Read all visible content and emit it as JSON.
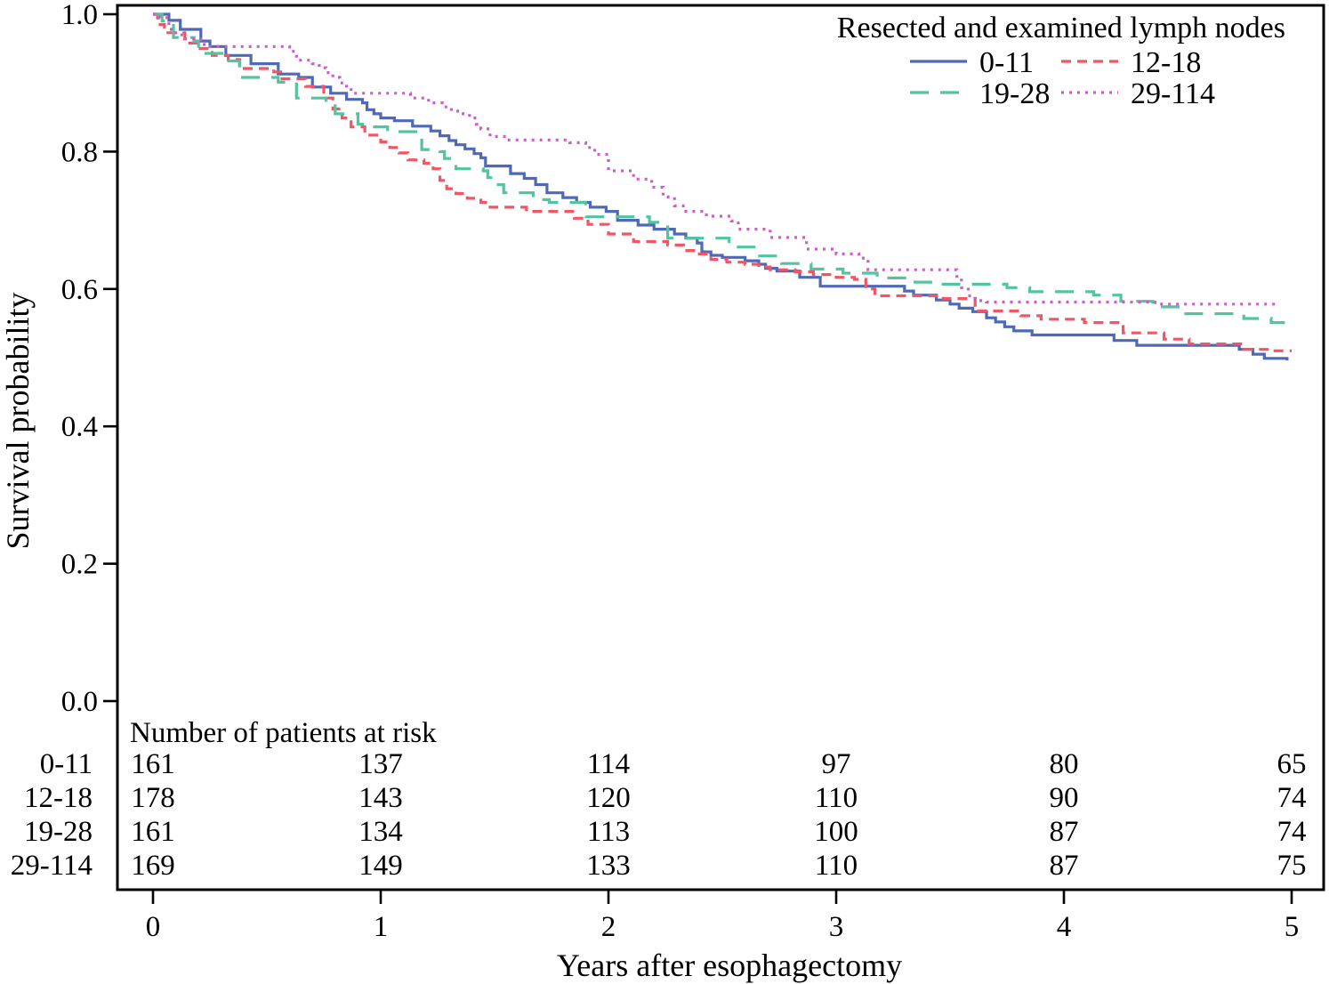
{
  "figure": {
    "y_axis_label": "Survival probability",
    "x_axis_label": "Years after esophagectomy",
    "risk_table_header": "Number of patients at risk"
  },
  "legend": {
    "title": "Resected and examined lymph nodes",
    "items": [
      "0-11",
      "12-18",
      "19-28",
      "29-114"
    ]
  },
  "chart_data": {
    "type": "line",
    "subtype": "kaplan-meier-step",
    "title": "Resected and examined lymph nodes",
    "xlabel": "Years after esophagectomy",
    "ylabel": "Survival probability",
    "xlim": [
      0,
      5
    ],
    "ylim": [
      0.0,
      1.0
    ],
    "x_tick_labels": [
      "0",
      "1",
      "2",
      "3",
      "4",
      "5"
    ],
    "x_tick_values": [
      0,
      1,
      2,
      3,
      4,
      5
    ],
    "y_tick_labels": [
      "1.0",
      "0.8",
      "0.6",
      "0.4",
      "0.2",
      "0.0"
    ],
    "y_tick_values": [
      1.0,
      0.8,
      0.6,
      0.4,
      0.2,
      0.0
    ],
    "grid": false,
    "legend_position": "top-right",
    "series": [
      {
        "name": "0-11",
        "color": "#5069b4",
        "style": "solid",
        "points": [
          [
            0,
            1.0
          ],
          [
            0.07,
            0.991
          ],
          [
            0.12,
            0.978
          ],
          [
            0.21,
            0.961
          ],
          [
            0.25,
            0.953
          ],
          [
            0.32,
            0.94
          ],
          [
            0.43,
            0.928
          ],
          [
            0.55,
            0.913
          ],
          [
            0.64,
            0.908
          ],
          [
            0.7,
            0.894
          ],
          [
            0.78,
            0.885
          ],
          [
            0.85,
            0.876
          ],
          [
            0.92,
            0.871
          ],
          [
            0.94,
            0.861
          ],
          [
            0.97,
            0.855
          ],
          [
            1.0,
            0.849
          ],
          [
            1.06,
            0.845
          ],
          [
            1.14,
            0.837
          ],
          [
            1.22,
            0.83
          ],
          [
            1.26,
            0.823
          ],
          [
            1.3,
            0.816
          ],
          [
            1.33,
            0.81
          ],
          [
            1.37,
            0.804
          ],
          [
            1.41,
            0.797
          ],
          [
            1.44,
            0.791
          ],
          [
            1.46,
            0.779
          ],
          [
            1.57,
            0.768
          ],
          [
            1.63,
            0.761
          ],
          [
            1.68,
            0.752
          ],
          [
            1.73,
            0.74
          ],
          [
            1.8,
            0.733
          ],
          [
            1.86,
            0.726
          ],
          [
            1.92,
            0.719
          ],
          [
            1.99,
            0.713
          ],
          [
            2.04,
            0.7
          ],
          [
            2.13,
            0.693
          ],
          [
            2.2,
            0.687
          ],
          [
            2.29,
            0.68
          ],
          [
            2.34,
            0.674
          ],
          [
            2.39,
            0.667
          ],
          [
            2.41,
            0.654
          ],
          [
            2.45,
            0.649
          ],
          [
            2.5,
            0.646
          ],
          [
            2.6,
            0.641
          ],
          [
            2.66,
            0.636
          ],
          [
            2.69,
            0.63
          ],
          [
            2.74,
            0.626
          ],
          [
            2.84,
            0.617
          ],
          [
            2.93,
            0.604
          ],
          [
            3.3,
            0.597
          ],
          [
            3.34,
            0.591
          ],
          [
            3.44,
            0.584
          ],
          [
            3.5,
            0.578
          ],
          [
            3.54,
            0.572
          ],
          [
            3.6,
            0.567
          ],
          [
            3.66,
            0.558
          ],
          [
            3.7,
            0.552
          ],
          [
            3.74,
            0.545
          ],
          [
            3.78,
            0.539
          ],
          [
            3.86,
            0.533
          ],
          [
            4.22,
            0.525
          ],
          [
            4.32,
            0.518
          ],
          [
            4.77,
            0.512
          ],
          [
            4.83,
            0.505
          ],
          [
            4.88,
            0.499
          ],
          [
            4.98,
            0.496
          ]
        ]
      },
      {
        "name": "12-18",
        "color": "#f25564",
        "style": "dashed",
        "points": [
          [
            0,
            1.0
          ],
          [
            0.02,
            0.985
          ],
          [
            0.05,
            0.973
          ],
          [
            0.14,
            0.958
          ],
          [
            0.2,
            0.95
          ],
          [
            0.26,
            0.94
          ],
          [
            0.33,
            0.934
          ],
          [
            0.38,
            0.921
          ],
          [
            0.53,
            0.916
          ],
          [
            0.56,
            0.906
          ],
          [
            0.67,
            0.895
          ],
          [
            0.75,
            0.878
          ],
          [
            0.79,
            0.862
          ],
          [
            0.83,
            0.849
          ],
          [
            0.87,
            0.836
          ],
          [
            0.93,
            0.824
          ],
          [
            1.0,
            0.814
          ],
          [
            1.04,
            0.806
          ],
          [
            1.08,
            0.798
          ],
          [
            1.12,
            0.788
          ],
          [
            1.19,
            0.783
          ],
          [
            1.23,
            0.775
          ],
          [
            1.26,
            0.758
          ],
          [
            1.29,
            0.746
          ],
          [
            1.33,
            0.739
          ],
          [
            1.38,
            0.732
          ],
          [
            1.44,
            0.726
          ],
          [
            1.48,
            0.719
          ],
          [
            1.64,
            0.713
          ],
          [
            1.85,
            0.703
          ],
          [
            1.91,
            0.694
          ],
          [
            2.0,
            0.68
          ],
          [
            2.11,
            0.669
          ],
          [
            2.26,
            0.664
          ],
          [
            2.33,
            0.656
          ],
          [
            2.39,
            0.651
          ],
          [
            2.45,
            0.643
          ],
          [
            2.52,
            0.639
          ],
          [
            2.6,
            0.636
          ],
          [
            2.66,
            0.632
          ],
          [
            2.71,
            0.628
          ],
          [
            2.82,
            0.625
          ],
          [
            2.9,
            0.621
          ],
          [
            3.0,
            0.617
          ],
          [
            3.08,
            0.614
          ],
          [
            3.13,
            0.6
          ],
          [
            3.17,
            0.59
          ],
          [
            3.47,
            0.586
          ],
          [
            3.61,
            0.568
          ],
          [
            3.81,
            0.561
          ],
          [
            3.9,
            0.556
          ],
          [
            4.09,
            0.551
          ],
          [
            4.26,
            0.536
          ],
          [
            4.44,
            0.527
          ],
          [
            4.55,
            0.52
          ],
          [
            4.79,
            0.512
          ],
          [
            4.9,
            0.51
          ],
          [
            5.0,
            0.51
          ]
        ]
      },
      {
        "name": "19-28",
        "color": "#53c3a0",
        "style": "long-dash",
        "points": [
          [
            0,
            1.0
          ],
          [
            0.04,
            0.99
          ],
          [
            0.09,
            0.966
          ],
          [
            0.18,
            0.961
          ],
          [
            0.2,
            0.943
          ],
          [
            0.32,
            0.932
          ],
          [
            0.38,
            0.908
          ],
          [
            0.55,
            0.901
          ],
          [
            0.63,
            0.878
          ],
          [
            0.76,
            0.871
          ],
          [
            0.8,
            0.855
          ],
          [
            0.9,
            0.84
          ],
          [
            0.92,
            0.836
          ],
          [
            1.03,
            0.829
          ],
          [
            1.16,
            0.822
          ],
          [
            1.18,
            0.803
          ],
          [
            1.26,
            0.8
          ],
          [
            1.28,
            0.79
          ],
          [
            1.31,
            0.786
          ],
          [
            1.33,
            0.775
          ],
          [
            1.45,
            0.772
          ],
          [
            1.47,
            0.762
          ],
          [
            1.5,
            0.752
          ],
          [
            1.54,
            0.74
          ],
          [
            1.67,
            0.73
          ],
          [
            1.74,
            0.726
          ],
          [
            1.9,
            0.705
          ],
          [
            2.18,
            0.697
          ],
          [
            2.26,
            0.674
          ],
          [
            2.53,
            0.661
          ],
          [
            2.65,
            0.648
          ],
          [
            2.76,
            0.637
          ],
          [
            2.89,
            0.629
          ],
          [
            3.03,
            0.623
          ],
          [
            3.18,
            0.616
          ],
          [
            3.31,
            0.61
          ],
          [
            3.44,
            0.607
          ],
          [
            3.75,
            0.602
          ],
          [
            3.85,
            0.596
          ],
          [
            4.13,
            0.591
          ],
          [
            4.25,
            0.582
          ],
          [
            4.39,
            0.574
          ],
          [
            4.51,
            0.564
          ],
          [
            4.79,
            0.557
          ],
          [
            4.91,
            0.551
          ],
          [
            5.0,
            0.551
          ]
        ]
      },
      {
        "name": "29-114",
        "color": "#c75fc7",
        "style": "dotted",
        "points": [
          [
            0,
            1.0
          ],
          [
            0.03,
            0.995
          ],
          [
            0.07,
            0.978
          ],
          [
            0.1,
            0.97
          ],
          [
            0.14,
            0.964
          ],
          [
            0.21,
            0.956
          ],
          [
            0.25,
            0.953
          ],
          [
            0.6,
            0.946
          ],
          [
            0.63,
            0.933
          ],
          [
            0.7,
            0.928
          ],
          [
            0.73,
            0.922
          ],
          [
            0.76,
            0.915
          ],
          [
            0.79,
            0.908
          ],
          [
            0.82,
            0.9
          ],
          [
            0.85,
            0.893
          ],
          [
            0.87,
            0.885
          ],
          [
            1.13,
            0.878
          ],
          [
            1.21,
            0.871
          ],
          [
            1.27,
            0.865
          ],
          [
            1.31,
            0.859
          ],
          [
            1.35,
            0.855
          ],
          [
            1.39,
            0.849
          ],
          [
            1.42,
            0.84
          ],
          [
            1.44,
            0.833
          ],
          [
            1.48,
            0.822
          ],
          [
            1.55,
            0.817
          ],
          [
            1.83,
            0.813
          ],
          [
            1.9,
            0.806
          ],
          [
            1.94,
            0.796
          ],
          [
            2.0,
            0.772
          ],
          [
            2.11,
            0.76
          ],
          [
            2.19,
            0.748
          ],
          [
            2.24,
            0.734
          ],
          [
            2.29,
            0.721
          ],
          [
            2.34,
            0.713
          ],
          [
            2.43,
            0.706
          ],
          [
            2.54,
            0.699
          ],
          [
            2.57,
            0.687
          ],
          [
            2.71,
            0.675
          ],
          [
            2.87,
            0.658
          ],
          [
            3.0,
            0.651
          ],
          [
            3.1,
            0.645
          ],
          [
            3.14,
            0.628
          ],
          [
            3.53,
            0.615
          ],
          [
            3.55,
            0.602
          ],
          [
            3.58,
            0.59
          ],
          [
            3.61,
            0.583
          ],
          [
            3.66,
            0.581
          ],
          [
            4.4,
            0.578
          ],
          [
            4.95,
            0.578
          ]
        ]
      }
    ],
    "risk_table": {
      "header": "Number of patients at risk",
      "time_points": [
        0,
        1,
        2,
        3,
        4,
        5
      ],
      "rows": [
        {
          "label": "0-11",
          "color": "#5069b4",
          "values": [
            161,
            137,
            114,
            97,
            80,
            65
          ]
        },
        {
          "label": "12-18",
          "color": "#f25564",
          "values": [
            178,
            143,
            120,
            110,
            90,
            74
          ]
        },
        {
          "label": "19-28",
          "color": "#53c3a0",
          "values": [
            161,
            134,
            113,
            100,
            87,
            74
          ]
        },
        {
          "label": "29-114",
          "color": "#c75fc7",
          "values": [
            169,
            149,
            133,
            110,
            87,
            75
          ]
        }
      ]
    }
  }
}
